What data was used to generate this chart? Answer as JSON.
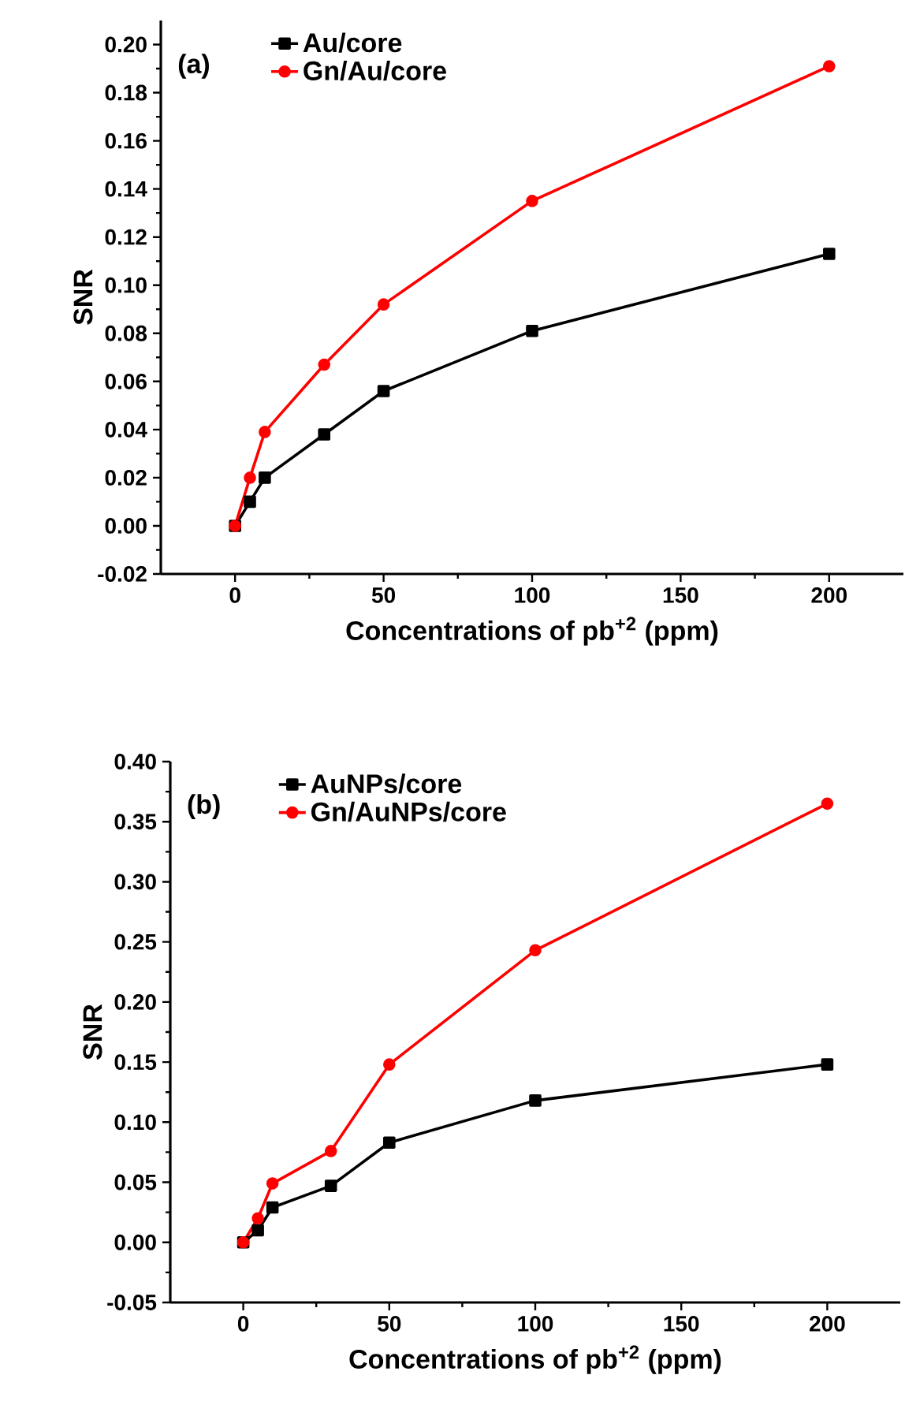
{
  "chart_data": [
    {
      "type": "line",
      "xlabel": "Concentrations of pb$^{+2}$ (ppm)",
      "ylabel": "SNR",
      "annotations": [
        "(a)"
      ],
      "legend": "top left",
      "xlim": [
        -25,
        225
      ],
      "xticks": [
        0,
        50,
        100,
        150,
        200
      ],
      "ylim": [
        -0.02,
        0.21
      ],
      "yticks": [
        {
          "value": -0.02,
          "label": "-0.02"
        },
        {
          "value": 0,
          "label": "0.00"
        },
        {
          "value": 0.02,
          "label": "0.02"
        },
        {
          "value": 0.04,
          "label": "0.04"
        },
        {
          "value": 0.06,
          "label": "0.06"
        },
        {
          "value": 0.08,
          "label": "0.08"
        },
        {
          "value": 0.1,
          "label": "0.10"
        },
        {
          "value": 0.12,
          "label": "0.12"
        },
        {
          "value": 0.14,
          "label": "0.14"
        },
        {
          "value": 0.16,
          "label": "0.16"
        },
        {
          "value": 0.18,
          "label": "0.18"
        },
        {
          "value": 0.2,
          "label": "0.20"
        }
      ],
      "x": [
        0,
        5,
        10,
        30,
        50,
        100,
        200
      ],
      "series": [
        {
          "name": "Au/core",
          "color": "#000000",
          "marker": "square",
          "values": [
            0,
            0.01,
            0.02,
            0.038,
            0.056,
            0.081,
            0.113
          ]
        },
        {
          "name": "Gn/Au/core",
          "color": "#ff0000",
          "marker": "circle",
          "values": [
            0,
            0.02,
            0.039,
            0.067,
            0.092,
            0.135,
            0.191
          ]
        }
      ]
    },
    {
      "type": "line",
      "xlabel": "Concentrations of pb$^{+2}$ (ppm)",
      "ylabel": "SNR",
      "annotations": [
        "(b)"
      ],
      "legend": "top left",
      "xlim": [
        -25,
        225
      ],
      "xticks": [
        0,
        50,
        100,
        150,
        200
      ],
      "ylim": [
        -0.05,
        0.4
      ],
      "yticks": [
        {
          "value": -0.05,
          "label": "-0.05"
        },
        {
          "value": 0,
          "label": "0.00"
        },
        {
          "value": 0.05,
          "label": "0.05"
        },
        {
          "value": 0.1,
          "label": "0.10"
        },
        {
          "value": 0.15,
          "label": "0.15"
        },
        {
          "value": 0.2,
          "label": "0.20"
        },
        {
          "value": 0.25,
          "label": "0.25"
        },
        {
          "value": 0.3,
          "label": "0.30"
        },
        {
          "value": 0.35,
          "label": "0.35"
        },
        {
          "value": 0.4,
          "label": "0.40"
        }
      ],
      "x": [
        0,
        5,
        10,
        30,
        50,
        100,
        200
      ],
      "series": [
        {
          "name": "AuNPs/core",
          "color": "#000000",
          "marker": "square",
          "values": [
            0,
            0.01,
            0.029,
            0.047,
            0.083,
            0.118,
            0.148
          ]
        },
        {
          "name": "Gn/AuNPs/core",
          "color": "#ff0000",
          "marker": "circle",
          "values": [
            0,
            0.02,
            0.049,
            0.076,
            0.148,
            0.243,
            0.365
          ]
        }
      ]
    }
  ]
}
